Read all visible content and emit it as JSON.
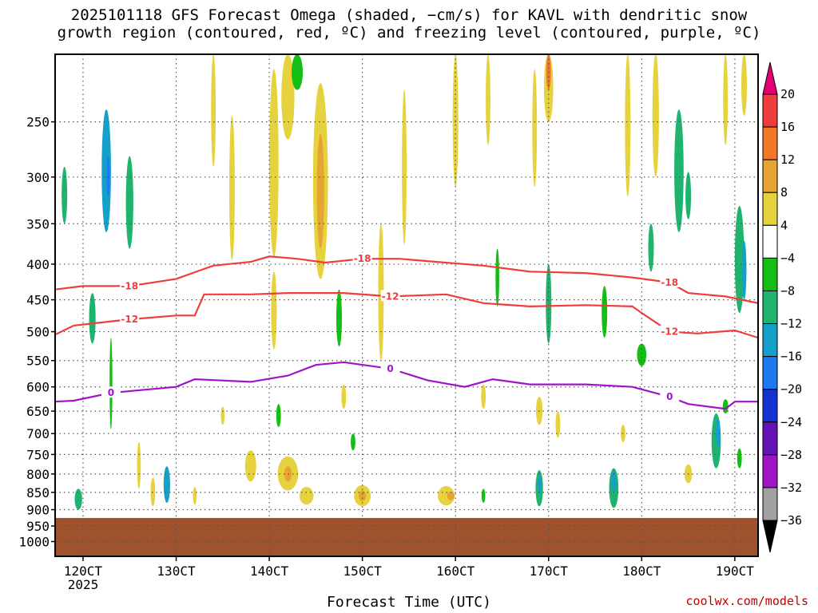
{
  "chart_data": {
    "type": "heatmap",
    "title": "2025101118 GFS Forecast Omega (shaded, −cm/s) for KAVL with dendritic snow\ngrowth region (contoured, red, ºC) and freezing level (contoured, purple, ºC)",
    "xlabel": "Forecast Time (UTC)",
    "ylabel": "",
    "credit": "coolwx.com/models",
    "x_ticks": [
      "120CT",
      "130CT",
      "140CT",
      "150CT",
      "160CT",
      "170CT",
      "180CT",
      "190CT"
    ],
    "x_year_label": "2025",
    "x_tick_days": [
      12,
      13,
      14,
      15,
      16,
      17,
      18,
      19
    ],
    "x_range_days": [
      11.7,
      19.25
    ],
    "y_ticks": [
      250,
      300,
      350,
      400,
      450,
      500,
      550,
      600,
      650,
      700,
      750,
      800,
      850,
      900,
      950,
      1000
    ],
    "y_range_hpa": [
      200,
      1050
    ],
    "y_scale": "log-pressure",
    "grid": true,
    "ground_level_hpa": 925,
    "ground_color": "#a0522d",
    "colorbar": {
      "ticks": [
        20,
        16,
        12,
        8,
        4,
        -4,
        -8,
        -12,
        -16,
        -20,
        -24,
        -28,
        -32,
        -36
      ],
      "colors": [
        "#e60073",
        "#f03c3c",
        "#f07828",
        "#e6a532",
        "#e6d23c",
        "#ffffff",
        "#14be14",
        "#1eb46e",
        "#14a0c8",
        "#1e78f0",
        "#1432d2",
        "#6414b4",
        "#a014c8",
        "#a0a0a0",
        "#000000"
      ]
    },
    "contours": [
      {
        "color": "#f03c3c",
        "label": "-18",
        "points": [
          [
            11.7,
            435
          ],
          [
            12.0,
            430
          ],
          [
            12.5,
            430
          ],
          [
            13.0,
            420
          ],
          [
            13.4,
            402
          ],
          [
            13.8,
            397
          ],
          [
            14.0,
            390
          ],
          [
            14.3,
            393
          ],
          [
            14.6,
            398
          ],
          [
            15.0,
            393
          ],
          [
            15.4,
            393
          ],
          [
            15.8,
            397
          ],
          [
            16.3,
            402
          ],
          [
            16.8,
            410
          ],
          [
            17.4,
            412
          ],
          [
            17.9,
            418
          ],
          [
            18.3,
            425
          ],
          [
            18.5,
            440
          ],
          [
            18.9,
            445
          ],
          [
            19.25,
            455
          ]
        ]
      },
      {
        "color": "#f03c3c",
        "label": "-12",
        "points": [
          [
            11.7,
            505
          ],
          [
            11.9,
            490
          ],
          [
            12.5,
            480
          ],
          [
            13.0,
            474
          ],
          [
            13.2,
            474
          ],
          [
            13.3,
            442
          ],
          [
            13.8,
            442
          ],
          [
            14.2,
            440
          ],
          [
            14.8,
            440
          ],
          [
            15.3,
            445
          ],
          [
            15.9,
            442
          ],
          [
            16.3,
            455
          ],
          [
            16.8,
            460
          ],
          [
            17.4,
            458
          ],
          [
            17.9,
            460
          ],
          [
            18.0,
            470
          ],
          [
            18.3,
            500
          ],
          [
            18.6,
            503
          ],
          [
            19.0,
            498
          ],
          [
            19.25,
            510
          ]
        ]
      },
      {
        "color": "#a014c8",
        "label": "0",
        "points": [
          [
            11.7,
            630
          ],
          [
            11.9,
            628
          ],
          [
            12.3,
            612
          ],
          [
            13.0,
            600
          ],
          [
            13.2,
            585
          ],
          [
            13.8,
            590
          ],
          [
            14.2,
            578
          ],
          [
            14.5,
            558
          ],
          [
            14.8,
            553
          ],
          [
            15.3,
            565
          ],
          [
            15.7,
            587
          ],
          [
            16.1,
            600
          ],
          [
            16.4,
            585
          ],
          [
            16.8,
            595
          ],
          [
            17.4,
            595
          ],
          [
            17.9,
            600
          ],
          [
            18.3,
            620
          ],
          [
            18.5,
            635
          ],
          [
            18.9,
            645
          ],
          [
            19.0,
            630
          ],
          [
            19.25,
            630
          ]
        ]
      }
    ],
    "shaded_cells": [
      {
        "t": 11.8,
        "p": 320,
        "w": 0.06,
        "h": 60,
        "v": -10
      },
      {
        "t": 12.25,
        "p": 300,
        "w": 0.1,
        "h": 120,
        "v": -14
      },
      {
        "t": 12.27,
        "p": 300,
        "w": 0.03,
        "h": 40,
        "v": -18
      },
      {
        "t": 12.5,
        "p": 330,
        "w": 0.08,
        "h": 100,
        "v": -12
      },
      {
        "t": 12.1,
        "p": 480,
        "w": 0.07,
        "h": 80,
        "v": -9
      },
      {
        "t": 12.3,
        "p": 600,
        "w": 0.03,
        "h": 180,
        "v": -6
      },
      {
        "t": 11.95,
        "p": 870,
        "w": 0.08,
        "h": 60,
        "v": -12
      },
      {
        "t": 12.9,
        "p": 830,
        "w": 0.07,
        "h": 100,
        "v": -15
      },
      {
        "t": 13.4,
        "p": 240,
        "w": 0.05,
        "h": 100,
        "v": 5
      },
      {
        "t": 13.6,
        "p": 320,
        "w": 0.06,
        "h": 150,
        "v": 5
      },
      {
        "t": 14.05,
        "p": 300,
        "w": 0.1,
        "h": 180,
        "v": 6
      },
      {
        "t": 14.05,
        "p": 470,
        "w": 0.06,
        "h": 120,
        "v": 6
      },
      {
        "t": 14.55,
        "p": 320,
        "w": 0.16,
        "h": 200,
        "v": 7
      },
      {
        "t": 14.55,
        "p": 320,
        "w": 0.08,
        "h": 120,
        "v": 11
      },
      {
        "t": 14.2,
        "p": 230,
        "w": 0.14,
        "h": 70,
        "v": 5
      },
      {
        "t": 14.3,
        "p": 210,
        "w": 0.12,
        "h": 30,
        "v": -7
      },
      {
        "t": 14.75,
        "p": 480,
        "w": 0.06,
        "h": 90,
        "v": -8
      },
      {
        "t": 15.2,
        "p": 450,
        "w": 0.06,
        "h": 200,
        "v": 5
      },
      {
        "t": 15.45,
        "p": 300,
        "w": 0.05,
        "h": 150,
        "v": 5
      },
      {
        "t": 16.0,
        "p": 250,
        "w": 0.06,
        "h": 120,
        "v": 5
      },
      {
        "t": 16.35,
        "p": 230,
        "w": 0.05,
        "h": 80,
        "v": 5
      },
      {
        "t": 16.45,
        "p": 420,
        "w": 0.04,
        "h": 80,
        "v": -7
      },
      {
        "t": 17.0,
        "p": 210,
        "w": 0.1,
        "h": 80,
        "v": 6
      },
      {
        "t": 17.0,
        "p": 205,
        "w": 0.05,
        "h": 40,
        "v": 12
      },
      {
        "t": 16.85,
        "p": 260,
        "w": 0.05,
        "h": 100,
        "v": 5
      },
      {
        "t": 17.0,
        "p": 460,
        "w": 0.06,
        "h": 120,
        "v": -9
      },
      {
        "t": 17.6,
        "p": 470,
        "w": 0.06,
        "h": 80,
        "v": -8
      },
      {
        "t": 17.85,
        "p": 260,
        "w": 0.06,
        "h": 120,
        "v": 5
      },
      {
        "t": 18.15,
        "p": 250,
        "w": 0.07,
        "h": 100,
        "v": 5
      },
      {
        "t": 18.4,
        "p": 300,
        "w": 0.1,
        "h": 120,
        "v": -9
      },
      {
        "t": 18.5,
        "p": 320,
        "w": 0.06,
        "h": 50,
        "v": -12
      },
      {
        "t": 18.1,
        "p": 380,
        "w": 0.06,
        "h": 60,
        "v": -11
      },
      {
        "t": 18.0,
        "p": 540,
        "w": 0.1,
        "h": 40,
        "v": -8
      },
      {
        "t": 18.9,
        "p": 230,
        "w": 0.05,
        "h": 80,
        "v": 5
      },
      {
        "t": 19.1,
        "p": 220,
        "w": 0.06,
        "h": 50,
        "v": 7
      },
      {
        "t": 19.05,
        "p": 400,
        "w": 0.1,
        "h": 140,
        "v": -11
      },
      {
        "t": 19.1,
        "p": 410,
        "w": 0.05,
        "h": 80,
        "v": -14
      },
      {
        "t": 14.2,
        "p": 800,
        "w": 0.22,
        "h": 90,
        "v": 5
      },
      {
        "t": 14.2,
        "p": 800,
        "w": 0.08,
        "h": 40,
        "v": 9
      },
      {
        "t": 14.4,
        "p": 860,
        "w": 0.15,
        "h": 50,
        "v": 6
      },
      {
        "t": 13.8,
        "p": 780,
        "w": 0.12,
        "h": 80,
        "v": 5
      },
      {
        "t": 15.0,
        "p": 860,
        "w": 0.18,
        "h": 60,
        "v": 6
      },
      {
        "t": 15.0,
        "p": 860,
        "w": 0.08,
        "h": 30,
        "v": 9
      },
      {
        "t": 15.9,
        "p": 860,
        "w": 0.18,
        "h": 55,
        "v": 6
      },
      {
        "t": 15.95,
        "p": 860,
        "w": 0.08,
        "h": 25,
        "v": 10
      },
      {
        "t": 16.9,
        "p": 840,
        "w": 0.08,
        "h": 100,
        "v": -10
      },
      {
        "t": 16.9,
        "p": 830,
        "w": 0.04,
        "h": 50,
        "v": -14
      },
      {
        "t": 17.7,
        "p": 840,
        "w": 0.1,
        "h": 110,
        "v": -11
      },
      {
        "t": 17.7,
        "p": 820,
        "w": 0.05,
        "h": 60,
        "v": -15
      },
      {
        "t": 18.5,
        "p": 800,
        "w": 0.08,
        "h": 50,
        "v": 5
      },
      {
        "t": 18.8,
        "p": 720,
        "w": 0.1,
        "h": 130,
        "v": -10
      },
      {
        "t": 18.82,
        "p": 700,
        "w": 0.05,
        "h": 70,
        "v": -13
      },
      {
        "t": 19.05,
        "p": 760,
        "w": 0.05,
        "h": 50,
        "v": -7
      },
      {
        "t": 16.3,
        "p": 620,
        "w": 0.05,
        "h": 50,
        "v": 5
      },
      {
        "t": 16.9,
        "p": 650,
        "w": 0.07,
        "h": 60,
        "v": 5
      },
      {
        "t": 17.1,
        "p": 680,
        "w": 0.05,
        "h": 60,
        "v": 5
      },
      {
        "t": 17.8,
        "p": 700,
        "w": 0.05,
        "h": 40,
        "v": 5
      },
      {
        "t": 13.5,
        "p": 660,
        "w": 0.04,
        "h": 40,
        "v": 5
      },
      {
        "t": 14.1,
        "p": 660,
        "w": 0.05,
        "h": 50,
        "v": -8
      },
      {
        "t": 14.8,
        "p": 620,
        "w": 0.05,
        "h": 50,
        "v": 5
      },
      {
        "t": 14.9,
        "p": 720,
        "w": 0.05,
        "h": 40,
        "v": -7
      },
      {
        "t": 12.6,
        "p": 780,
        "w": 0.04,
        "h": 120,
        "v": 5
      },
      {
        "t": 12.75,
        "p": 850,
        "w": 0.05,
        "h": 80,
        "v": 5
      },
      {
        "t": 13.2,
        "p": 860,
        "w": 0.04,
        "h": 50,
        "v": 5
      },
      {
        "t": 16.3,
        "p": 860,
        "w": 0.04,
        "h": 40,
        "v": -8
      },
      {
        "t": 18.9,
        "p": 640,
        "w": 0.06,
        "h": 30,
        "v": -8
      }
    ]
  }
}
